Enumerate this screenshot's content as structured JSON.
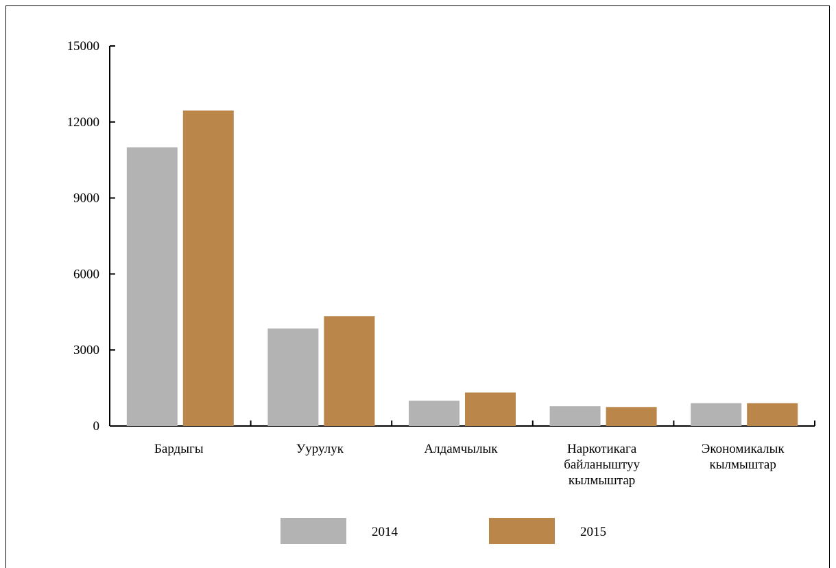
{
  "chart_data": {
    "type": "bar",
    "categories": [
      [
        "Бардыгы"
      ],
      [
        "Уурулук"
      ],
      [
        "Алдамчылык"
      ],
      [
        "Наркотикага",
        "байланыштуу",
        "кылмыштар"
      ],
      [
        "Экономикалык",
        "кылмыштар"
      ]
    ],
    "series": [
      {
        "name": "2014",
        "color": "#b3b3b3",
        "values": [
          11000,
          3850,
          1000,
          780,
          900
        ]
      },
      {
        "name": "2015",
        "color": "#bb8649",
        "values": [
          12450,
          4330,
          1320,
          750,
          900
        ]
      }
    ],
    "yticks": [
      "0",
      "3000",
      "6000",
      "9000",
      "12000",
      "15000"
    ],
    "ylim": [
      0,
      15000
    ],
    "legend_position": "bottom"
  }
}
